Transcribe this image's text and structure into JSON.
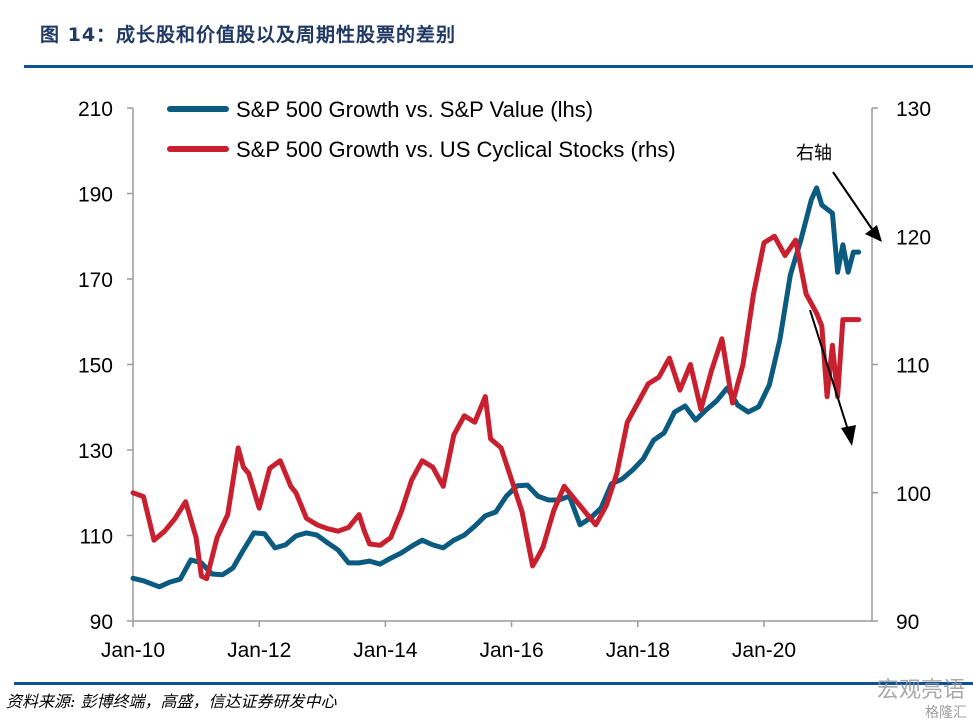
{
  "header": {
    "title": "图 14：成长股和价值股以及周期性股票的差别"
  },
  "footer": {
    "source": "资料来源: 彭博终端，高盛，信达证券研发中心",
    "watermark": "宏观亮语",
    "watermark2": "格隆汇"
  },
  "colors": {
    "growth_value": "#0b5a80",
    "growth_cyclical": "#c8202f",
    "axis": "#9a9a9a",
    "rule": "#0b5394",
    "title": "#1f3864"
  },
  "chart_data": {
    "type": "line",
    "title": "图 14：成长股和价值股以及周期性股票的差别",
    "xlabel": "",
    "ylabel_left": "",
    "ylabel_right": "",
    "x_ticks": [
      "Jan-10",
      "Jan-12",
      "Jan-14",
      "Jan-16",
      "Jan-18",
      "Jan-20"
    ],
    "x_range_months_from_jan2010": [
      0,
      140
    ],
    "ylim_left": [
      90,
      210
    ],
    "yticks_left": [
      "90",
      "110",
      "130",
      "150",
      "170",
      "190",
      "210"
    ],
    "ylim_right": [
      90,
      130
    ],
    "yticks_right": [
      "90",
      "100",
      "110",
      "120",
      "130"
    ],
    "grid": false,
    "legend_position": "top-left",
    "annotation": "右轴",
    "series": [
      {
        "name": "S&P 500 Growth vs. S&P Value (lhs)",
        "axis": "left",
        "x_months": [
          0,
          2,
          5,
          7,
          9,
          11,
          13,
          15,
          17,
          19,
          21,
          23,
          25,
          27,
          29,
          31,
          33,
          35,
          37,
          39,
          41,
          43,
          45,
          47,
          49,
          51,
          53,
          55,
          57,
          59,
          61,
          63,
          65,
          67,
          69,
          71,
          73,
          75,
          77,
          79,
          81,
          83,
          85,
          87,
          89,
          91,
          93,
          95,
          97,
          99,
          101,
          103,
          105,
          107,
          109,
          111,
          113,
          115,
          117,
          119,
          121,
          123,
          125,
          127,
          129,
          130,
          131,
          133,
          134,
          135,
          136,
          137,
          138
        ],
        "values": [
          100.0,
          99.4,
          98.0,
          99.1,
          99.8,
          104.3,
          103.6,
          101.0,
          100.8,
          102.4,
          106.6,
          110.6,
          110.4,
          107.1,
          107.8,
          109.9,
          110.6,
          110.1,
          108.3,
          106.6,
          103.6,
          103.6,
          104.0,
          103.3,
          104.7,
          105.9,
          107.5,
          108.9,
          107.8,
          107.1,
          108.9,
          110.1,
          112.2,
          114.6,
          115.5,
          119.2,
          121.6,
          121.8,
          119.2,
          118.3,
          118.3,
          119.2,
          112.5,
          114.1,
          116.4,
          122.1,
          123.2,
          125.3,
          127.9,
          132.3,
          134.0,
          138.9,
          140.3,
          137.0,
          139.4,
          141.5,
          144.5,
          140.5,
          138.9,
          140.1,
          145.2,
          155.7,
          170.9,
          179.1,
          188.5,
          191.3,
          187.3,
          185.4,
          171.6,
          178.0,
          171.6,
          176.3,
          176.3
        ]
      },
      {
        "name": "S&P 500 Growth vs. US Cyclical Stocks (rhs)",
        "axis": "right",
        "x_months": [
          0,
          2,
          4,
          6,
          8,
          10,
          12,
          13,
          14,
          16,
          18,
          20,
          21,
          22,
          24,
          26,
          28,
          30,
          31,
          33,
          35,
          37,
          39,
          41,
          43,
          44,
          45,
          47,
          49,
          51,
          53,
          55,
          57,
          59,
          61,
          63,
          65,
          67,
          68,
          70,
          72,
          74,
          76,
          77,
          78,
          80,
          82,
          84,
          86,
          88,
          90,
          92,
          94,
          96,
          98,
          100,
          102,
          104,
          106,
          108,
          110,
          112,
          114,
          116,
          118,
          120,
          122,
          124,
          126,
          128,
          130,
          131,
          132,
          133,
          134,
          135,
          136,
          137,
          138
        ],
        "values": [
          100.0,
          99.7,
          96.3,
          97.0,
          98.0,
          99.3,
          96.5,
          93.5,
          93.3,
          96.5,
          98.3,
          103.5,
          102.0,
          101.5,
          98.8,
          101.9,
          102.5,
          100.5,
          100.0,
          98.0,
          97.5,
          97.2,
          97.0,
          97.3,
          98.3,
          97.0,
          96.0,
          95.9,
          96.5,
          98.5,
          101.0,
          102.5,
          102.0,
          100.5,
          104.5,
          106.0,
          105.5,
          107.5,
          104.2,
          103.5,
          101.0,
          98.5,
          94.3,
          95.0,
          95.8,
          98.6,
          100.5,
          99.5,
          98.5,
          97.5,
          99.0,
          101.5,
          105.5,
          107.0,
          108.5,
          109.0,
          110.5,
          108.0,
          110.0,
          106.5,
          109.5,
          112.0,
          107.0,
          110.0,
          115.5,
          119.5,
          120.0,
          118.5,
          119.7,
          115.5,
          114.0,
          113.0,
          107.5,
          111.5,
          107.5,
          113.5,
          113.5,
          113.5,
          113.5
        ]
      }
    ]
  }
}
